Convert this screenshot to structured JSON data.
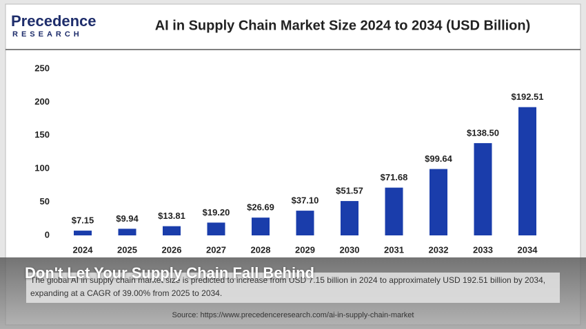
{
  "logo": {
    "name": "Precedence",
    "sub": "RESEARCH"
  },
  "chart_data": {
    "type": "bar",
    "title": "AI in Supply Chain Market Size 2024 to 2034 (USD Billion)",
    "categories": [
      "2024",
      "2025",
      "2026",
      "2027",
      "2028",
      "2029",
      "2030",
      "2031",
      "2032",
      "2033",
      "2034"
    ],
    "values": [
      7.15,
      9.94,
      13.81,
      19.2,
      26.69,
      37.1,
      51.57,
      71.68,
      99.64,
      138.5,
      192.51
    ],
    "value_labels": [
      "$7.15",
      "$9.94",
      "$13.81",
      "$19.20",
      "$26.69",
      "$37.10",
      "$51.57",
      "$71.68",
      "$99.64",
      "$138.50",
      "$192.51"
    ],
    "color": "#1a3dab",
    "ylim": [
      0,
      250
    ],
    "yticks": [
      0,
      50,
      100,
      150,
      200,
      250
    ],
    "grid": false
  },
  "overlay": {
    "headline": "Don't Let Your Supply Chain Fall Behind",
    "description": "The global AI in supply chain market size is predicted to increase from USD 7.15 billion in 2024 to approximately USD 192.51 billion by 2034, expanding at a CAGR of 39.00% from 2025 to 2034.",
    "source": "Source: https://www.precedenceresearch.com/ai-in-supply-chain-market"
  }
}
